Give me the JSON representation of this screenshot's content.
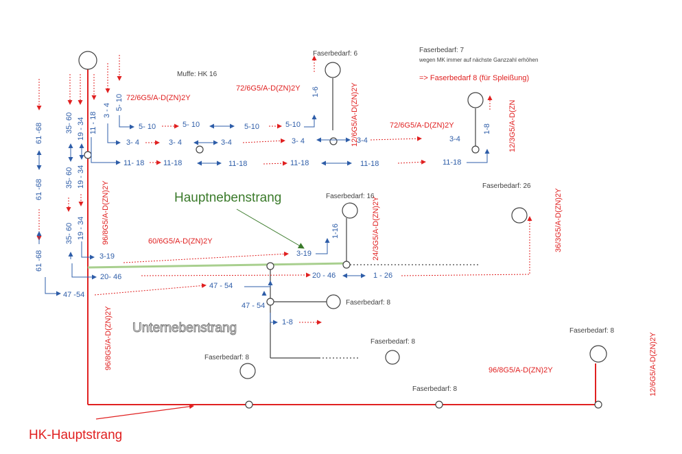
{
  "titles": {
    "hauptnebenstrang": "Hauptnebenstrang",
    "unternebenstrang": "Unternebenstrang",
    "hk_hauptstrang": "HK-Hauptstrang"
  },
  "top_notes": {
    "faserbedarf_7": "Faserbedarf: 7",
    "faserbedarf_7_line2": "wegen MK immer auf nächste Ganzzahl erhöhen",
    "faserbedarf_8_spleiss": "=> Faserbedarf 8 (für Spleißung)",
    "km_muffe": "Muffe: HK 16"
  },
  "demand_labels": {
    "f6": "Faserbedarf: 6",
    "f16": "Faserbedarf: 16",
    "f26": "Faserbedarf: 26",
    "f8_a": "Faserbedarf: 8",
    "f8_b": "Faserbedarf: 8",
    "f8_c": "Faserbedarf: 8",
    "f8_d": "Faserbedarf: 8",
    "f8_e": "Faserbedarf: 8"
  },
  "cable_labels": {
    "c72a": "72/6G5/A-D(ZN)2Y",
    "c72b": "72/6G5/A-D(ZN)2Y",
    "c72c": "72/6G5/A-D(ZN)2Y",
    "c12a": "12/6G5/A-D(ZN)2Y",
    "c12b": "12/3G5/A-D(ZN",
    "c96a": "96/8G5/A-D(ZN)2Y",
    "c96b": "96/8G5/A-D(ZN)2Y",
    "c96c": "96/8G5/A-D(ZN)2Y",
    "c60": "60/6G5/A-D(ZN)2Y",
    "c24": "24/3G5/A-D(ZN)2Y",
    "c36": "36/3G5/A-D(ZN)2Y",
    "c12d": "12/6G5/A-D(ZN)2Y"
  },
  "fiber_ranges": {
    "r61_68_a": "61 -68",
    "r61_68_b": "61 -68",
    "r61_68_c": "61 -68",
    "r35_60_a": "35- 60",
    "r35_60_b": "35- 60",
    "r35_60_c": "35- 60",
    "r19_34_a": "19 - 34",
    "r19_34_b": "19 - 34",
    "r19_34_c": "19 - 34",
    "r11_18_v": "11 - 18",
    "r3_4_v": "3 - 4",
    "r5_10_v": "5- 10",
    "r5_10_a": "5- 10",
    "r5_10_b": "5- 10",
    "r5_10_c": "5-10",
    "r5_10_d": "5-10",
    "r3_4_a": "3- 4",
    "r3_4_b": "3- 4",
    "r3_4_c": "3-4",
    "r3_4_d": "3- 4",
    "r3_4_e": "3-4",
    "r3_4_f": "3-4",
    "r11_18_a": "11- 18",
    "r11_18_b": "11-18",
    "r11_18_c": "11-18",
    "r11_18_d": "11-18",
    "r11_18_e": "11-18",
    "r11_18_f": "11-18",
    "r1_6": "1-6",
    "r1_8_top": "1-8",
    "r1_16": "1-16",
    "r3_19_a": "3-19",
    "r3_19_b": "3-19",
    "r20_46_a": "20- 46",
    "r20_46_b": "20 - 46",
    "r1_26": "1 - 26",
    "r47_54_a": "47 -54",
    "r47_54_b": "47 - 54",
    "r47_54_c": "47 - 54",
    "r1_8_low": "1-8"
  },
  "colors": {
    "red": "#e02020",
    "blue": "#2e5da8",
    "green": "#a8cf8e",
    "dark": "#404040"
  }
}
